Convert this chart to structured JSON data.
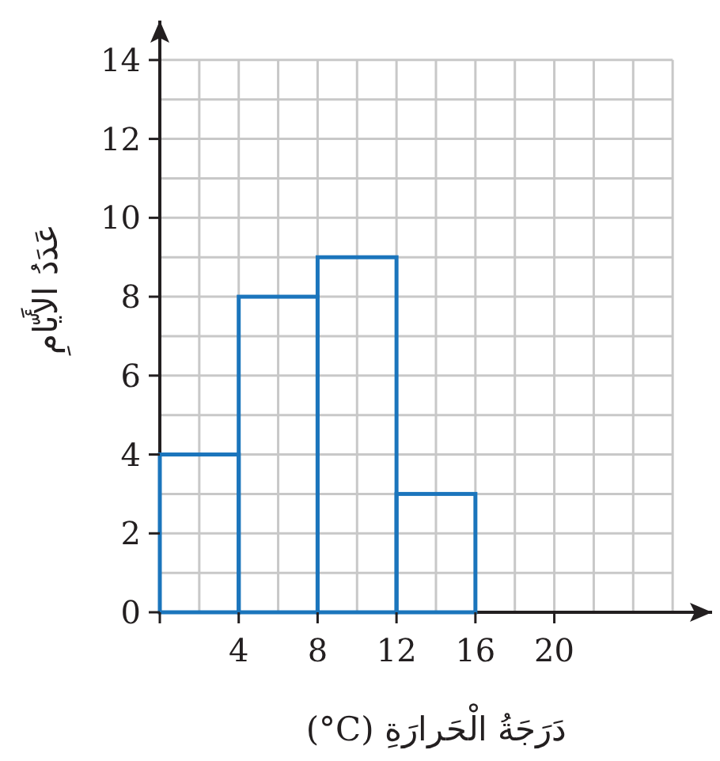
{
  "chart_data": {
    "type": "histogram",
    "xlabel": "دَرَجَةُ الْحَرارَةِ (°C)",
    "ylabel": "عَدَدُ الأَيّامِ",
    "bins": [
      0,
      4,
      8,
      12,
      16
    ],
    "values": [
      4,
      8,
      9,
      3
    ],
    "color": "#1b75bc",
    "xlim": [
      0,
      28
    ],
    "ylim": [
      0,
      15
    ],
    "xticks": [
      {
        "value": 0,
        "label": null
      },
      4,
      8,
      12,
      16,
      20
    ],
    "yticks": [
      0,
      2,
      4,
      6,
      8,
      10,
      12,
      14
    ],
    "grid": true
  }
}
